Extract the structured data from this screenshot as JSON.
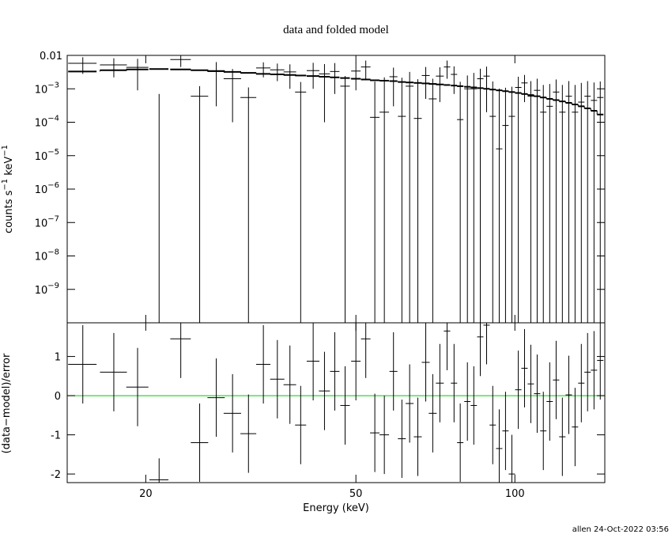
{
  "chart_data": {
    "type": "spectrum",
    "title": "data and folded model",
    "xlabel": "Energy (keV)",
    "ylabel": [
      "counts s",
      "−1",
      " keV",
      "−1"
    ],
    "resid_ylabel": "(data−model)/error",
    "xlog": true,
    "xlim": [
      14.2,
      148
    ],
    "xticks": [
      20,
      50,
      100
    ],
    "ylog": true,
    "ylim": [
      1e-10,
      0.01
    ],
    "yticks": [
      0.01,
      {
        "value": 0.001,
        "label": "10",
        "exponent": "−3"
      },
      {
        "value": 0.0001,
        "label": "10",
        "exponent": "−4"
      },
      {
        "value": 1e-05,
        "label": "10",
        "exponent": "−5"
      },
      {
        "value": 1e-06,
        "label": "10",
        "exponent": "−6"
      },
      {
        "value": 1e-07,
        "label": "10",
        "exponent": "−7"
      },
      {
        "value": 1e-08,
        "label": "10",
        "exponent": "−8"
      },
      {
        "value": 1e-09,
        "label": "10",
        "exponent": "−9"
      }
    ],
    "resid_ylim": [
      -2.22,
      1.86
    ],
    "resid_yticks": [
      -2,
      -1,
      0,
      1
    ],
    "data_color": "#000000",
    "model_color": "#000000",
    "zero_line": {
      "value": 0,
      "color": "#00cc00"
    },
    "energy": [
      15.2,
      17.4,
      19.3,
      21.2,
      23.3,
      25.3,
      27.2,
      29.2,
      31.3,
      33.4,
      35.5,
      37.5,
      39.3,
      41.5,
      43.6,
      45.6,
      47.7,
      50.0,
      52.2,
      54.3,
      56.6,
      58.9,
      61.1,
      63.2,
      65.5,
      67.8,
      69.9,
      72.1,
      74.4,
      76.7,
      78.8,
      81.3,
      83.6,
      86.0,
      88.4,
      90.8,
      93.4,
      96.0,
      98.7,
      101.5,
      104.3,
      107.2,
      110.2,
      113.2,
      116.4,
      119.7,
      123.0,
      126.5,
      130.0,
      133.6,
      137.3,
      141.2,
      145.1
    ],
    "energy_err": [
      0.94,
      1.02,
      0.93,
      0.88,
      1.04,
      0.96,
      1.03,
      1.11,
      1.08,
      1.04,
      1.1,
      1.03,
      0.95,
      1.15,
      1.05,
      0.94,
      0.99,
      1.03,
      1.08,
      1.12,
      1.17,
      1.02,
      1.05,
      1.09,
      1.13,
      1.17,
      1.21,
      1.24,
      1.03,
      1.06,
      1.09,
      1.12,
      1.15,
      1.19,
      1.22,
      1.25,
      1.29,
      1.32,
      1.36,
      1.4,
      1.44,
      1.48,
      1.52,
      1.56,
      1.61,
      1.65,
      1.7,
      1.75,
      1.79,
      1.84,
      1.89,
      1.95,
      2.0
    ],
    "rate": [
      0.0058,
      0.0052,
      0.0044,
      0,
      0.0075,
      0.0006,
      0.0033,
      0.002,
      0.00055,
      0.0042,
      0.0037,
      0.0032,
      0.0008,
      0.0035,
      0.0028,
      0.0033,
      0.0012,
      0.0034,
      0.0045,
      0.00014,
      0.0002,
      0.0023,
      0.00015,
      0.0012,
      0.00013,
      0.0025,
      0.0005,
      0.0024,
      0.0045,
      0.0027,
      0.00012,
      0.001,
      0.001,
      0.002,
      0.0024,
      0.00015,
      1.6e-05,
      8e-05,
      0.00015,
      0.0011,
      0.0015,
      0.0006,
      0.0009,
      0.0002,
      0.0003,
      0.0008,
      0.0002,
      0.0006,
      0.0002,
      0.0004,
      0.0006,
      0.00045,
      0.00055
    ],
    "rate_err": [
      0.003,
      0.003,
      0.0035,
      0.0007,
      0.003,
      0.0006,
      0.003,
      0.0019,
      0.00055,
      0.002,
      0.002,
      0.0022,
      0.0008,
      0.0025,
      0.0027,
      0.0026,
      0.0012,
      0.0025,
      0.0025,
      0.0015,
      0.002,
      0.002,
      0.002,
      0.002,
      0.0018,
      0.002,
      0.0015,
      0.002,
      0.0025,
      0.002,
      0.0015,
      0.0015,
      0.002,
      0.002,
      0.0022,
      0.0015,
      0.001,
      0.001,
      0.001,
      0.0012,
      0.0011,
      0.0011,
      0.0011,
      0.0011,
      0.0011,
      0.0011,
      0.0011,
      0.0011,
      0.0011,
      0.0011,
      0.0011,
      0.0011,
      0.0011
    ],
    "model": [
      0.0033,
      0.0036,
      0.0038,
      0.0039,
      0.0038,
      0.0036,
      0.0034,
      0.0032,
      0.003,
      0.0028,
      0.0027,
      0.0026,
      0.0025,
      0.0024,
      0.0023,
      0.0022,
      0.0021,
      0.002,
      0.0019,
      0.0018,
      0.00175,
      0.0017,
      0.0016,
      0.00155,
      0.0015,
      0.00145,
      0.0014,
      0.00135,
      0.0013,
      0.00125,
      0.0012,
      0.00115,
      0.0011,
      0.00105,
      0.001,
      0.00095,
      0.0009,
      0.00085,
      0.0008,
      0.00075,
      0.0007,
      0.00065,
      0.0006,
      0.00055,
      0.0005,
      0.00046,
      0.00042,
      0.00038,
      0.00034,
      0.0003,
      0.00026,
      0.00022,
      0.00017
    ],
    "residual": [
      0.8,
      0.6,
      0.22,
      -2.15,
      1.45,
      -1.2,
      -0.05,
      -0.45,
      -0.97,
      0.8,
      0.42,
      0.28,
      -0.75,
      0.88,
      0.12,
      0.62,
      -0.25,
      0.88,
      1.45,
      -0.95,
      -1.0,
      0.62,
      -1.1,
      -0.2,
      -1.05,
      0.85,
      -0.45,
      0.32,
      1.65,
      0.32,
      -1.2,
      -0.15,
      -0.25,
      1.5,
      1.8,
      -0.75,
      -1.35,
      -0.9,
      -2.0,
      0.15,
      0.7,
      0.3,
      0.05,
      -0.9,
      -0.15,
      0.4,
      -1.05,
      0.02,
      -0.8,
      0.32,
      0.6,
      0.65,
      0.9
    ],
    "residual_err": [
      1,
      1,
      1,
      0.55,
      1,
      1,
      1,
      1,
      1,
      1,
      1,
      1,
      1,
      1,
      1,
      1,
      1,
      1,
      1,
      1,
      1,
      1,
      1,
      1,
      1,
      1,
      1,
      1,
      1,
      1,
      1,
      1,
      1,
      1,
      1,
      1,
      1,
      1,
      1,
      1,
      1,
      1,
      1,
      1,
      1,
      1,
      1,
      1,
      1,
      1,
      1,
      1,
      1
    ]
  },
  "footer": "allen 24-Oct-2022 03:56"
}
